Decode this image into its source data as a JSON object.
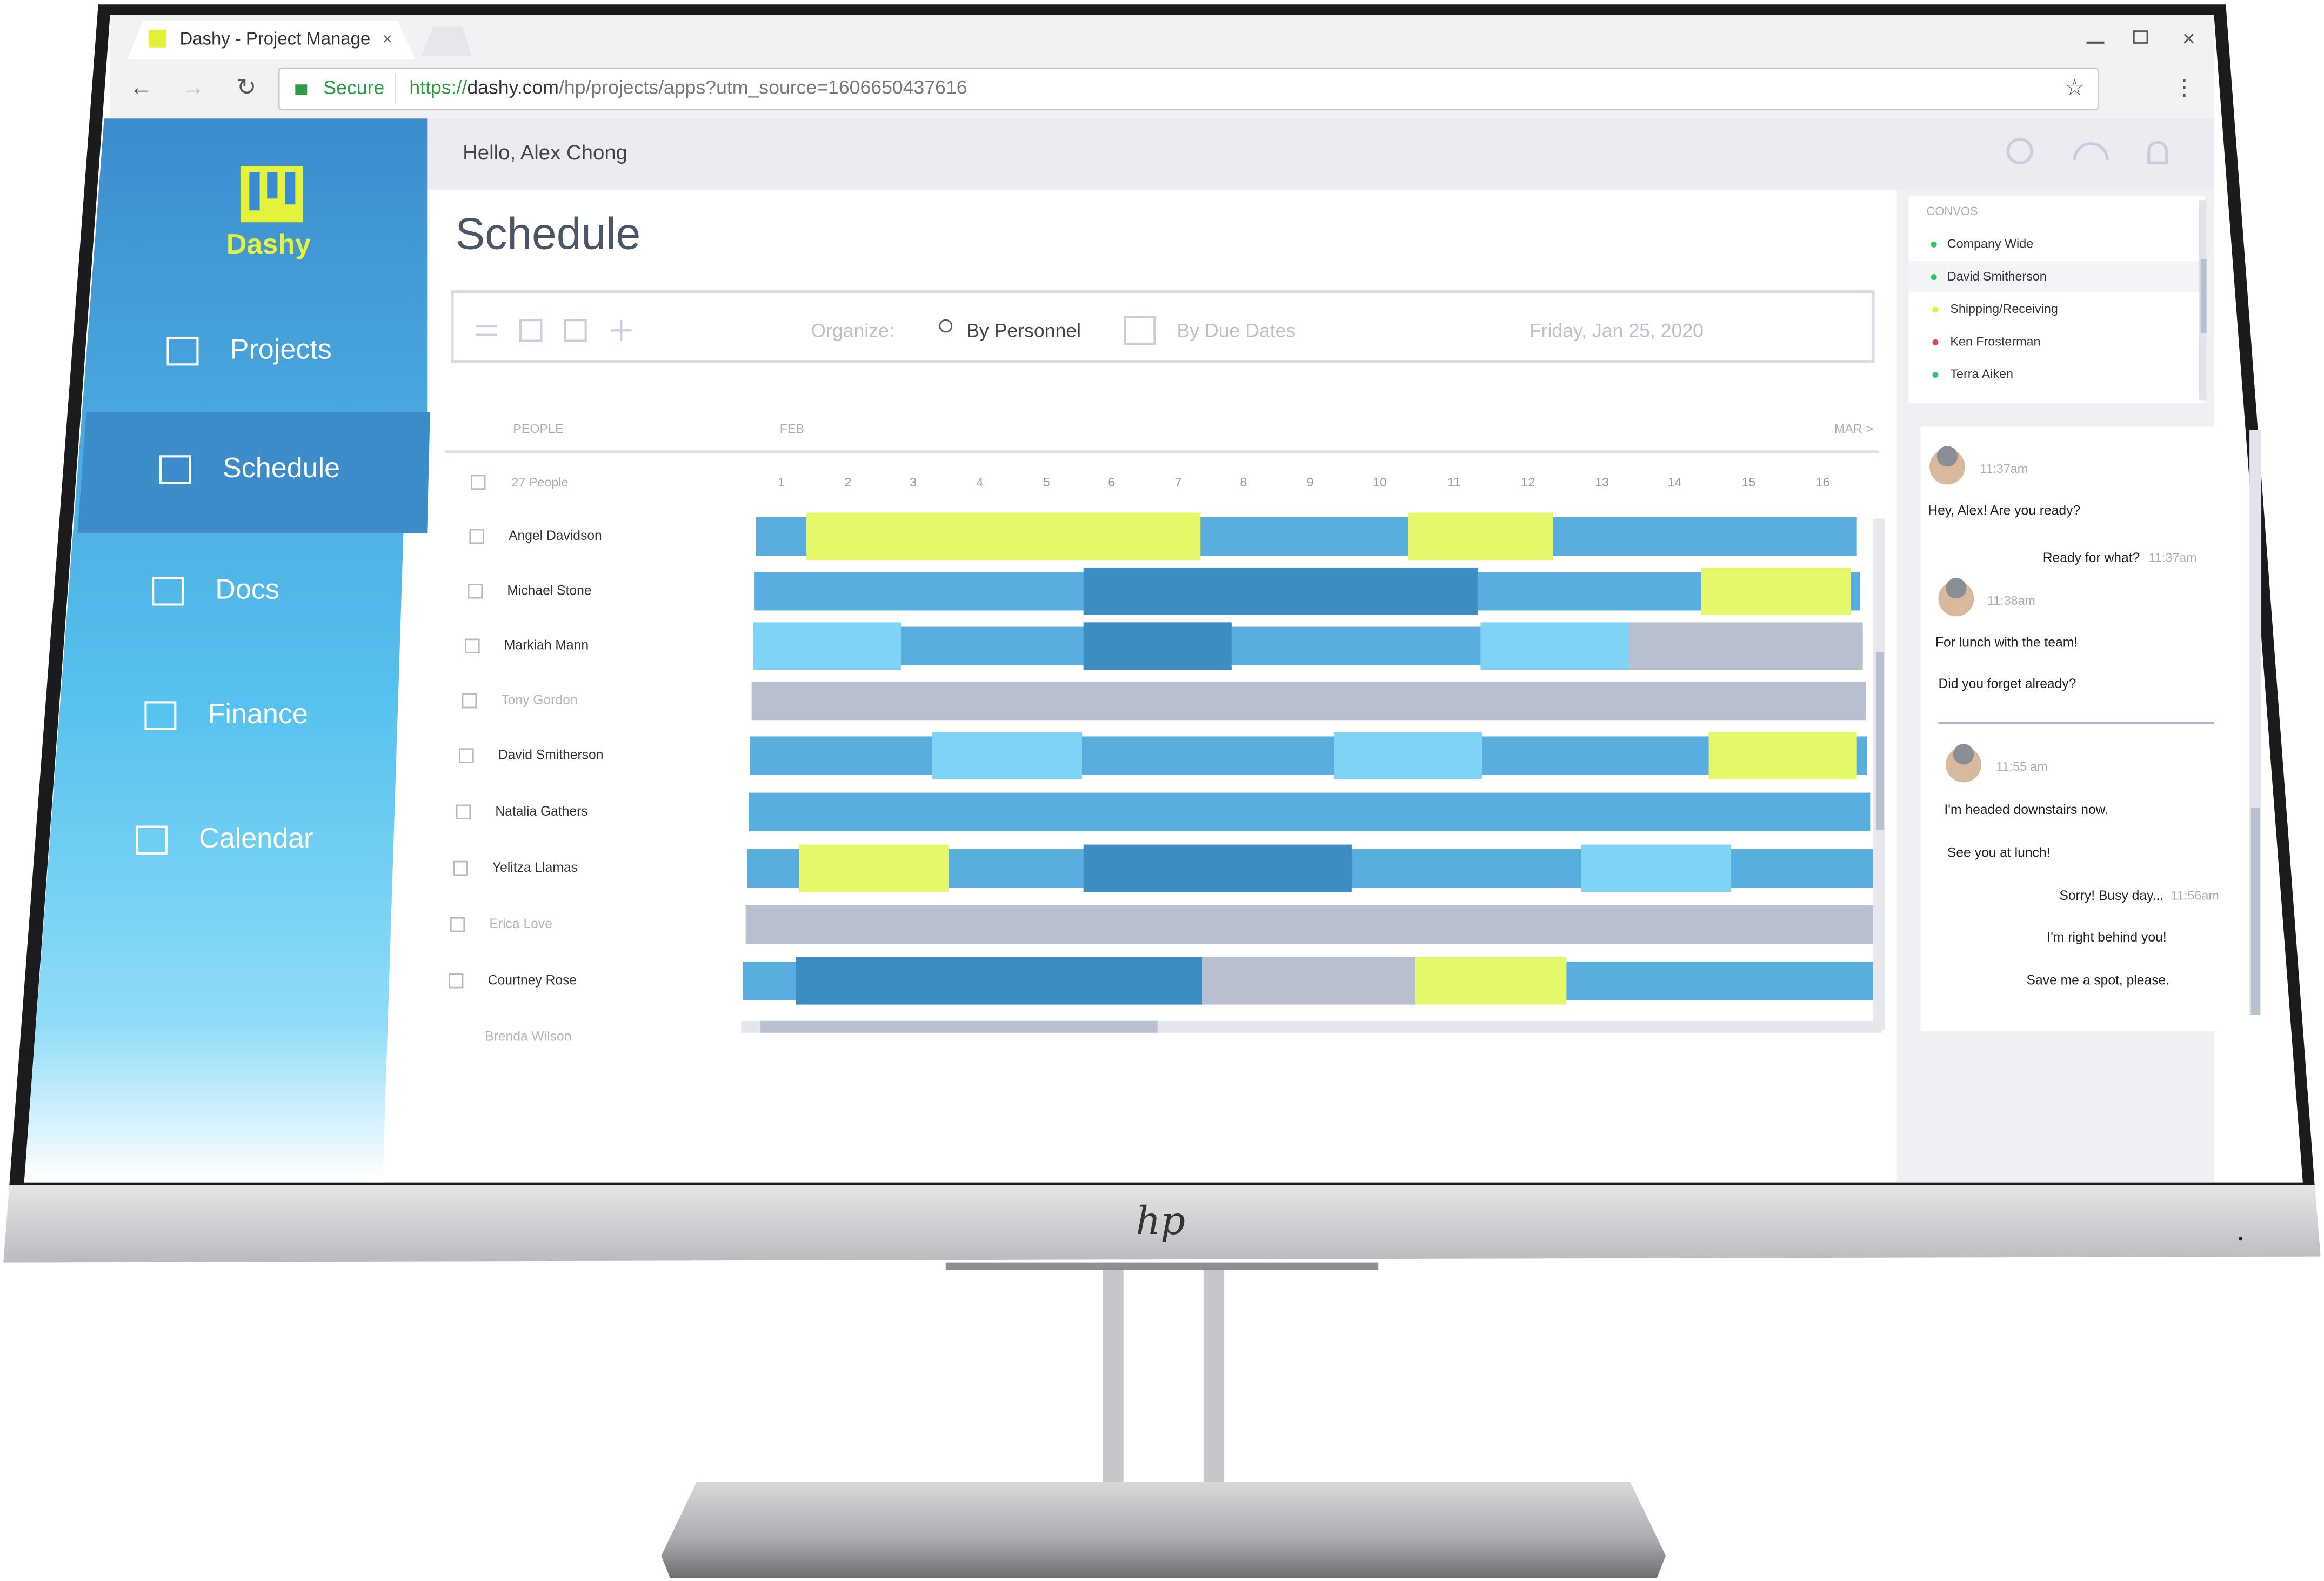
{
  "browser": {
    "tab_title": "Dashy - Project Manage",
    "secure": "Secure",
    "url": {
      "scheme": "https://",
      "host": "dashy.com",
      "path": "/hp/projects/apps?utm_source=1606650437616"
    }
  },
  "header": {
    "greeting": "Hello, Alex Chong"
  },
  "sidebar": {
    "brand": "Dashy",
    "nav": [
      "Projects",
      "Schedule",
      "Docs",
      "Finance",
      "Calendar"
    ]
  },
  "main": {
    "title": "Schedule",
    "toolbar": {
      "organize": "Organize:",
      "by_personnel": "By Personnel",
      "by_due_dates": "By Due Dates",
      "date": "Friday, Jan 25, 2020"
    },
    "table": {
      "people_header": "PEOPLE",
      "month": "FEB",
      "next_month": "MAR >",
      "count": "27 People",
      "days": [
        1,
        2,
        3,
        4,
        5,
        6,
        7,
        8,
        9,
        10,
        11,
        12,
        13,
        14,
        15,
        16
      ],
      "people": [
        "Angel Davidson",
        "Michael Stone",
        "Markiah Mann",
        "Tony Gordon",
        "David Smitherson",
        "Natalia Gathers",
        "Yelitza Llamas",
        "Erica Love",
        "Courtney Rose",
        "Brenda Wilson"
      ]
    }
  },
  "convos": {
    "title": "CONVOS",
    "items": [
      "Company Wide",
      "David Smitherson",
      "Shipping/Receiving",
      "Ken Frosterman",
      "Terra Aiken"
    ]
  },
  "chat": {
    "entries": [
      {
        "time": "11:37am"
      },
      {
        "text": "Hey, Alex! Are you ready?"
      },
      {
        "text": "Ready for what?"
      },
      {
        "time": "11:37am"
      },
      {
        "time": "11:38am"
      },
      {
        "text": "For lunch with the team!"
      },
      {
        "text": "Did you forget already?"
      },
      {
        "time": "11:55 am"
      },
      {
        "text": "I'm headed downstairs now."
      },
      {
        "text": "See you at lunch!"
      },
      {
        "text": "Sorry! Busy day..."
      },
      {
        "time": "11:56am"
      },
      {
        "text": "I'm right behind you!"
      },
      {
        "text": "Save me a spot, please."
      }
    ]
  },
  "monitor": {
    "brand": "hp"
  }
}
